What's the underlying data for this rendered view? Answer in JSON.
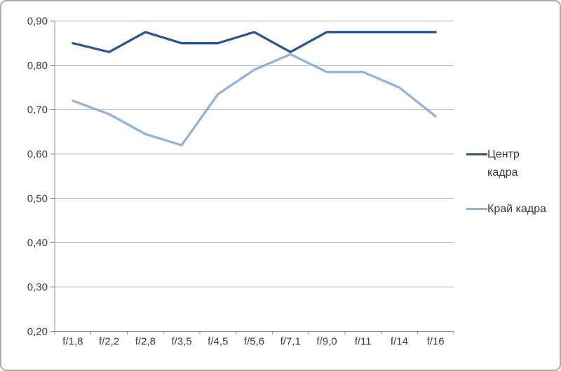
{
  "chart_data": {
    "type": "line",
    "title": "",
    "xlabel": "",
    "ylabel": "",
    "categories": [
      "f/1,8",
      "f/2,2",
      "f/2,8",
      "f/3,5",
      "f/4,5",
      "f/5,6",
      "f/7,1",
      "f/9,0",
      "f/11",
      "f/14",
      "f/16"
    ],
    "series": [
      {
        "name": "Центр кадра",
        "color": "#2e568c",
        "values": [
          0.85,
          0.83,
          0.875,
          0.85,
          0.85,
          0.875,
          0.83,
          0.875,
          0.875,
          0.875,
          0.875
        ]
      },
      {
        "name": "Край кадра",
        "color": "#95b3d7",
        "values": [
          0.72,
          0.69,
          0.645,
          0.62,
          0.735,
          0.79,
          0.825,
          0.785,
          0.785,
          0.75,
          0.685
        ]
      }
    ],
    "ylim": [
      0.2,
      0.9
    ],
    "ytick_step": 0.1,
    "ytick_labels": [
      "0,20",
      "0,30",
      "0,40",
      "0,50",
      "0,60",
      "0,70",
      "0,80",
      "0,90"
    ],
    "grid": true,
    "legend_position": "right"
  },
  "legend": {
    "items": [
      {
        "series": "Центр кадра",
        "lines": [
          "Центр",
          "кадра"
        ]
      },
      {
        "series": "Край кадра",
        "lines": [
          "Край кадра"
        ]
      }
    ]
  },
  "colors": {
    "series_center": "#2e568c",
    "series_edge": "#95b3d7",
    "gridline": "#c3c3c3",
    "axis": "#8c8c8c",
    "label_text": "#3d3d3d",
    "frame_border": "#a9a9a9",
    "background": "#ffffff"
  }
}
